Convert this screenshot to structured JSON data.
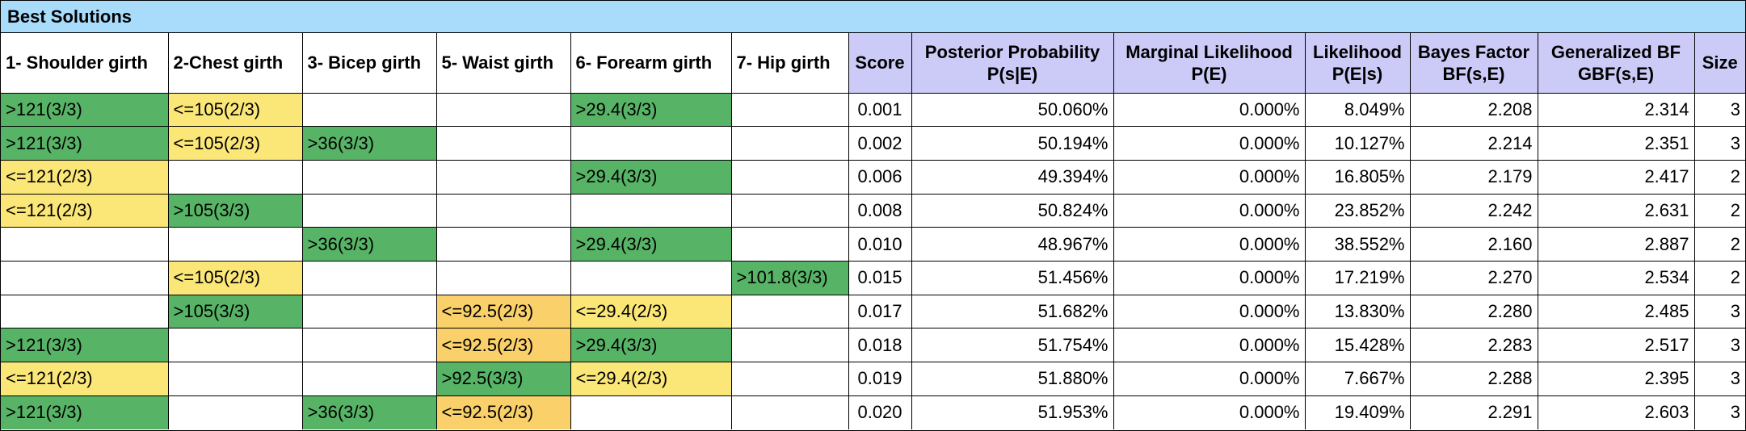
{
  "title": "Best Solutions",
  "colors": {
    "green": "#57b466",
    "yellow": "#fbe778",
    "orange": "#f9d06a",
    "title_bg": "#a8dcfa",
    "metric_header_bg": "#cccaf6"
  },
  "headers": {
    "attributes": [
      "1- Shoulder girth",
      "2-Chest girth",
      "3- Bicep girth",
      "5- Waist girth",
      "6- Forearm girth",
      "7- Hip girth"
    ],
    "score": "Score",
    "posterior": [
      "Posterior Probability",
      "P(s|E)"
    ],
    "marginal": [
      "Marginal Likelihood",
      "P(E)"
    ],
    "likelihood": [
      "Likelihood",
      "P(E|s)"
    ],
    "bayes": [
      "Bayes Factor",
      "BF(s,E)"
    ],
    "gbf": [
      "Generalized BF",
      "GBF(s,E)"
    ],
    "size": "Size"
  },
  "rows": [
    {
      "cells": [
        {
          "text": ">121(3/3)",
          "color": "green"
        },
        {
          "text": "<=105(2/3)",
          "color": "yellow"
        },
        {
          "text": "",
          "color": ""
        },
        {
          "text": "",
          "color": ""
        },
        {
          "text": ">29.4(3/3)",
          "color": "green"
        },
        {
          "text": "",
          "color": ""
        }
      ],
      "score": "0.001",
      "posterior": "50.060%",
      "marginal": "0.000%",
      "likelihood": "8.049%",
      "bayes": "2.208",
      "gbf": "2.314",
      "size": "3"
    },
    {
      "cells": [
        {
          "text": ">121(3/3)",
          "color": "green"
        },
        {
          "text": "<=105(2/3)",
          "color": "yellow"
        },
        {
          "text": ">36(3/3)",
          "color": "green"
        },
        {
          "text": "",
          "color": ""
        },
        {
          "text": "",
          "color": ""
        },
        {
          "text": "",
          "color": ""
        }
      ],
      "score": "0.002",
      "posterior": "50.194%",
      "marginal": "0.000%",
      "likelihood": "10.127%",
      "bayes": "2.214",
      "gbf": "2.351",
      "size": "3"
    },
    {
      "cells": [
        {
          "text": "<=121(2/3)",
          "color": "yellow"
        },
        {
          "text": "",
          "color": ""
        },
        {
          "text": "",
          "color": ""
        },
        {
          "text": "",
          "color": ""
        },
        {
          "text": ">29.4(3/3)",
          "color": "green"
        },
        {
          "text": "",
          "color": ""
        }
      ],
      "score": "0.006",
      "posterior": "49.394%",
      "marginal": "0.000%",
      "likelihood": "16.805%",
      "bayes": "2.179",
      "gbf": "2.417",
      "size": "2"
    },
    {
      "cells": [
        {
          "text": "<=121(2/3)",
          "color": "yellow"
        },
        {
          "text": ">105(3/3)",
          "color": "green"
        },
        {
          "text": "",
          "color": ""
        },
        {
          "text": "",
          "color": ""
        },
        {
          "text": "",
          "color": ""
        },
        {
          "text": "",
          "color": ""
        }
      ],
      "score": "0.008",
      "posterior": "50.824%",
      "marginal": "0.000%",
      "likelihood": "23.852%",
      "bayes": "2.242",
      "gbf": "2.631",
      "size": "2"
    },
    {
      "cells": [
        {
          "text": "",
          "color": ""
        },
        {
          "text": "",
          "color": ""
        },
        {
          "text": ">36(3/3)",
          "color": "green"
        },
        {
          "text": "",
          "color": ""
        },
        {
          "text": ">29.4(3/3)",
          "color": "green"
        },
        {
          "text": "",
          "color": ""
        }
      ],
      "score": "0.010",
      "posterior": "48.967%",
      "marginal": "0.000%",
      "likelihood": "38.552%",
      "bayes": "2.160",
      "gbf": "2.887",
      "size": "2"
    },
    {
      "cells": [
        {
          "text": "",
          "color": ""
        },
        {
          "text": "<=105(2/3)",
          "color": "yellow"
        },
        {
          "text": "",
          "color": ""
        },
        {
          "text": "",
          "color": ""
        },
        {
          "text": "",
          "color": ""
        },
        {
          "text": ">101.8(3/3)",
          "color": "green"
        }
      ],
      "score": "0.015",
      "posterior": "51.456%",
      "marginal": "0.000%",
      "likelihood": "17.219%",
      "bayes": "2.270",
      "gbf": "2.534",
      "size": "2"
    },
    {
      "cells": [
        {
          "text": "",
          "color": ""
        },
        {
          "text": ">105(3/3)",
          "color": "green"
        },
        {
          "text": "",
          "color": ""
        },
        {
          "text": "<=92.5(2/3)",
          "color": "orange"
        },
        {
          "text": "<=29.4(2/3)",
          "color": "yellow"
        },
        {
          "text": "",
          "color": ""
        }
      ],
      "score": "0.017",
      "posterior": "51.682%",
      "marginal": "0.000%",
      "likelihood": "13.830%",
      "bayes": "2.280",
      "gbf": "2.485",
      "size": "3"
    },
    {
      "cells": [
        {
          "text": ">121(3/3)",
          "color": "green"
        },
        {
          "text": "",
          "color": ""
        },
        {
          "text": "",
          "color": ""
        },
        {
          "text": "<=92.5(2/3)",
          "color": "orange"
        },
        {
          "text": ">29.4(3/3)",
          "color": "green"
        },
        {
          "text": "",
          "color": ""
        }
      ],
      "score": "0.018",
      "posterior": "51.754%",
      "marginal": "0.000%",
      "likelihood": "15.428%",
      "bayes": "2.283",
      "gbf": "2.517",
      "size": "3"
    },
    {
      "cells": [
        {
          "text": "<=121(2/3)",
          "color": "yellow"
        },
        {
          "text": "",
          "color": ""
        },
        {
          "text": "",
          "color": ""
        },
        {
          "text": ">92.5(3/3)",
          "color": "green"
        },
        {
          "text": "<=29.4(2/3)",
          "color": "yellow"
        },
        {
          "text": "",
          "color": ""
        }
      ],
      "score": "0.019",
      "posterior": "51.880%",
      "marginal": "0.000%",
      "likelihood": "7.667%",
      "bayes": "2.288",
      "gbf": "2.395",
      "size": "3"
    },
    {
      "cells": [
        {
          "text": ">121(3/3)",
          "color": "green"
        },
        {
          "text": "",
          "color": ""
        },
        {
          "text": ">36(3/3)",
          "color": "green"
        },
        {
          "text": "<=92.5(2/3)",
          "color": "orange"
        },
        {
          "text": "",
          "color": ""
        },
        {
          "text": "",
          "color": ""
        }
      ],
      "score": "0.020",
      "posterior": "51.953%",
      "marginal": "0.000%",
      "likelihood": "19.409%",
      "bayes": "2.291",
      "gbf": "2.603",
      "size": "3"
    }
  ]
}
